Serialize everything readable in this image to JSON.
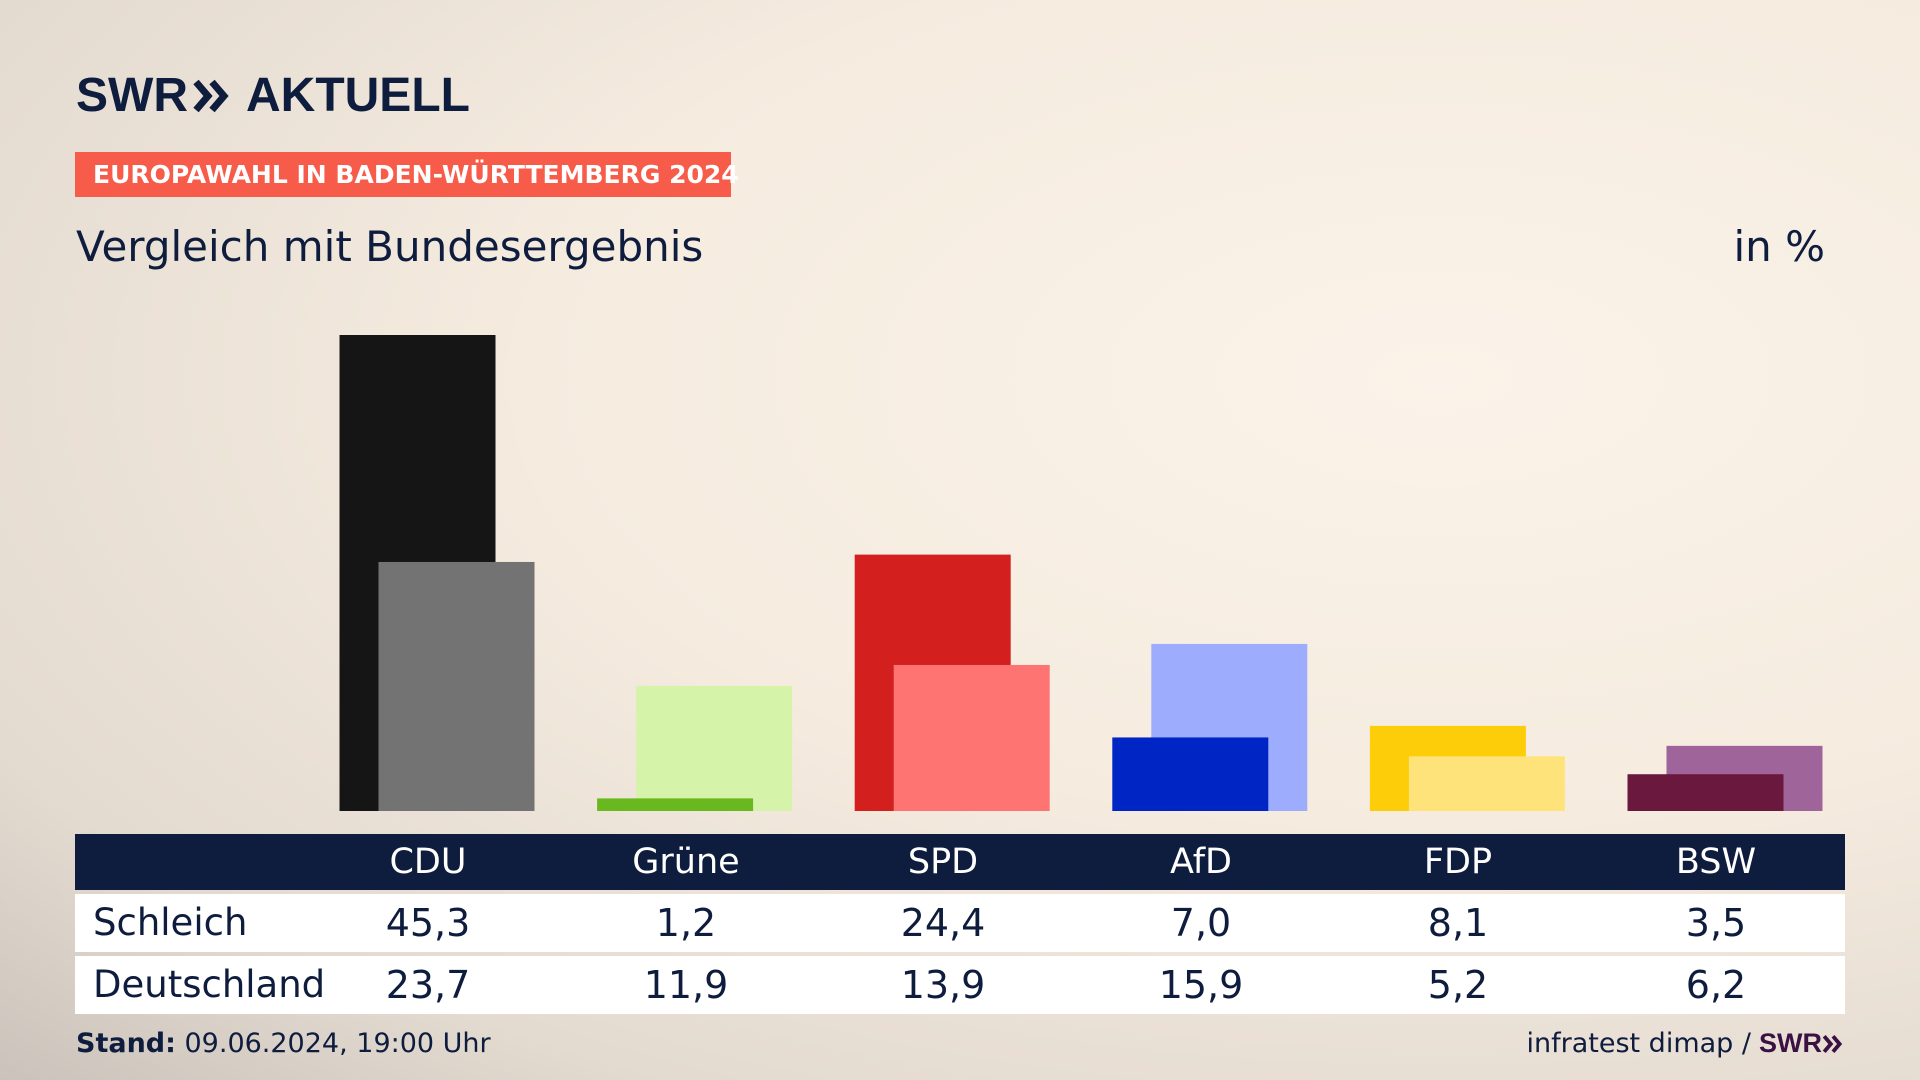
{
  "brand": {
    "logo_left": "SWR",
    "logo_right": "AKTUELL"
  },
  "badge": "EUROPAWAHL IN BADEN-WÜRTTEMBERG 2024",
  "subtitle": "Vergleich mit Bundesergebnis",
  "unit": "in %",
  "table": {
    "headers": [
      "CDU",
      "Grüne",
      "SPD",
      "AfD",
      "FDP",
      "BSW"
    ],
    "rows": [
      {
        "label": "Schleich",
        "values": [
          "45,3",
          "1,2",
          "24,4",
          "7,0",
          "8,1",
          "3,5"
        ]
      },
      {
        "label": "Deutschland",
        "values": [
          "23,7",
          "11,9",
          "13,9",
          "15,9",
          "5,2",
          "6,2"
        ]
      }
    ]
  },
  "footer": {
    "stand_label": "Stand:",
    "stand_value": " 09.06.2024, 19:00 Uhr",
    "source": "infratest dimap /",
    "source_logo": "SWR"
  },
  "chart_data": {
    "type": "bar",
    "categories": [
      "CDU",
      "Grüne",
      "SPD",
      "AfD",
      "FDP",
      "BSW"
    ],
    "series": [
      {
        "name": "Schleich",
        "values": [
          45.3,
          1.2,
          24.4,
          7.0,
          8.1,
          3.5
        ],
        "colors": [
          "#151515",
          "#6ab81f",
          "#d41f1f",
          "#0025c5",
          "#fecd09",
          "#6a183e"
        ]
      },
      {
        "name": "Deutschland",
        "values": [
          23.7,
          11.9,
          13.9,
          15.9,
          5.2,
          6.2
        ],
        "colors": [
          "#737373",
          "#d5f4aa",
          "#fe7472",
          "#9dacfd",
          "#fee37b",
          "#9f649a"
        ]
      }
    ],
    "ylim": [
      0,
      45.3
    ],
    "grid": false,
    "legend": "table-below"
  }
}
